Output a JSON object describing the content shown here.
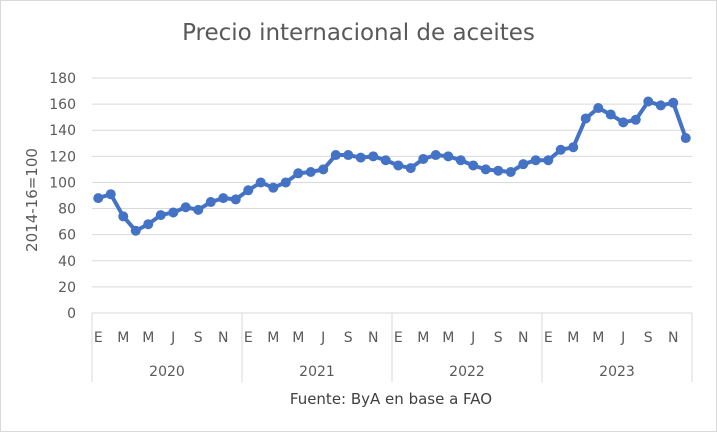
{
  "chart_data": {
    "type": "line",
    "title": "Precio internacional de aceites",
    "ylabel": "2014-16=100",
    "xlabel": "",
    "source": "Fuente: ByA en base a FAO",
    "ylim": [
      0,
      180
    ],
    "yticks": [
      "0",
      "20",
      "40",
      "60",
      "80",
      "100",
      "120",
      "140",
      "160",
      "180"
    ],
    "grid": true,
    "legend": "none",
    "color": "#4472c4",
    "month_labels": [
      "E",
      "M",
      "M",
      "J",
      "S",
      "N",
      "E",
      "M",
      "M",
      "J",
      "S",
      "N",
      "E",
      "M",
      "M",
      "J",
      "S",
      "N",
      "E",
      "M",
      "M",
      "J",
      "S",
      "N"
    ],
    "years": [
      "2020",
      "2021",
      "2022",
      "2023"
    ],
    "series": [
      {
        "values": [
          88,
          91,
          74,
          63,
          68,
          75,
          77,
          81,
          79,
          85,
          88,
          87,
          94,
          100,
          96,
          100,
          107,
          108,
          110,
          121,
          121,
          119,
          120,
          117,
          113,
          111,
          118,
          121,
          120,
          117,
          113,
          110,
          109,
          108,
          114,
          117,
          117,
          125,
          127,
          149,
          157,
          152,
          146,
          148,
          162,
          159,
          161,
          134
        ]
      }
    ]
  }
}
